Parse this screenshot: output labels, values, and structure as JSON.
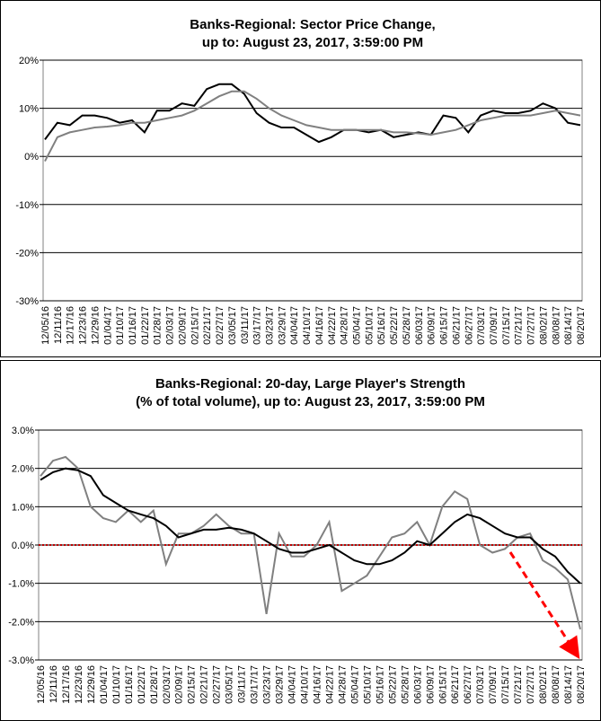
{
  "chart_data": [
    {
      "type": "line",
      "title": [
        "Banks-Regional: Sector Price Change,",
        "up to: August 23, 2017, 3:59:00 PM"
      ],
      "categories": [
        "12/05/16",
        "12/11/16",
        "12/17/16",
        "12/23/16",
        "12/29/16",
        "01/04/17",
        "01/10/17",
        "01/16/17",
        "01/22/17",
        "01/28/17",
        "02/03/17",
        "02/09/17",
        "02/15/17",
        "02/21/17",
        "02/27/17",
        "03/05/17",
        "03/11/17",
        "03/17/17",
        "03/23/17",
        "03/29/17",
        "04/04/17",
        "04/10/17",
        "04/16/17",
        "04/22/17",
        "04/28/17",
        "05/04/17",
        "05/10/17",
        "05/16/17",
        "05/22/17",
        "05/28/17",
        "06/03/17",
        "06/09/17",
        "06/15/17",
        "06/21/17",
        "06/27/17",
        "07/03/17",
        "07/09/17",
        "07/15/17",
        "07/21/17",
        "07/27/17",
        "08/02/17",
        "08/08/17",
        "08/14/17",
        "08/20/17"
      ],
      "series": [
        {
          "color": "#000000",
          "values": [
            3.5,
            7,
            6.5,
            8.5,
            8.5,
            8,
            7,
            7.5,
            5,
            9.5,
            9.5,
            11,
            10.5,
            14,
            15,
            15,
            13,
            9,
            7,
            6,
            6,
            4.5,
            3,
            4,
            5.5,
            5.5,
            5,
            5.5,
            4,
            4.5,
            5,
            4.5,
            8.5,
            8,
            5,
            8.5,
            9.5,
            9,
            9,
            9.5,
            11,
            10,
            7,
            6.5
          ]
        },
        {
          "color": "#808080",
          "values": [
            -1,
            4,
            5,
            5.5,
            6,
            6.2,
            6.5,
            7,
            7,
            7.5,
            8,
            8.5,
            9.5,
            11,
            12.5,
            13.5,
            13.5,
            12,
            10,
            8.5,
            7.5,
            6.5,
            6,
            5.5,
            5.5,
            5.5,
            5.5,
            5.5,
            5,
            5,
            4.8,
            4.5,
            5,
            5.5,
            6.5,
            7.5,
            8,
            8.5,
            8.5,
            8.5,
            9,
            9.5,
            9,
            8.5
          ]
        }
      ],
      "ylim": [
        -30,
        20
      ],
      "yticks": [
        {
          "value": 20,
          "label": "20%"
        },
        {
          "value": 10,
          "label": "10%"
        },
        {
          "value": 0,
          "label": "0%"
        },
        {
          "value": -10,
          "label": "-10%"
        },
        {
          "value": -20,
          "label": "-20%"
        },
        {
          "value": -30,
          "label": "-30%"
        }
      ],
      "grid": true
    },
    {
      "type": "line",
      "title": [
        "Banks-Regional: 20-day, Large Player's Strength",
        "(% of total volume), up to: August 23, 2017, 3:59:00 PM"
      ],
      "categories": [
        "12/05/16",
        "12/11/16",
        "12/17/16",
        "12/23/16",
        "12/29/16",
        "01/04/17",
        "01/10/17",
        "01/16/17",
        "01/22/17",
        "01/28/17",
        "02/03/17",
        "02/09/17",
        "02/15/17",
        "02/21/17",
        "02/27/17",
        "03/05/17",
        "03/11/17",
        "03/17/17",
        "03/23/17",
        "03/29/17",
        "04/04/17",
        "04/10/17",
        "04/16/17",
        "04/22/17",
        "04/28/17",
        "05/04/17",
        "05/10/17",
        "05/16/17",
        "05/22/17",
        "05/28/17",
        "06/03/17",
        "06/09/17",
        "06/15/17",
        "06/21/17",
        "06/27/17",
        "07/03/17",
        "07/09/17",
        "07/15/17",
        "07/21/17",
        "07/27/17",
        "08/02/17",
        "08/08/17",
        "08/14/17",
        "08/20/17"
      ],
      "series": [
        {
          "color": "#808080",
          "values": [
            1.8,
            2.2,
            2.3,
            2.0,
            1.0,
            0.7,
            0.6,
            0.9,
            0.6,
            0.9,
            -0.5,
            0.3,
            0.3,
            0.5,
            0.8,
            0.5,
            0.3,
            0.3,
            -1.8,
            0.3,
            -0.3,
            -0.3,
            0.0,
            0.6,
            -1.2,
            -1.0,
            -0.8,
            -0.3,
            0.2,
            0.3,
            0.6,
            0.0,
            1.0,
            1.4,
            1.2,
            0.0,
            -0.2,
            -0.1,
            0.2,
            0.3,
            -0.4,
            -0.6,
            -0.9,
            -2.2
          ]
        },
        {
          "color": "#000000",
          "values": [
            1.7,
            1.9,
            2.0,
            1.95,
            1.8,
            1.3,
            1.1,
            0.9,
            0.8,
            0.7,
            0.5,
            0.2,
            0.3,
            0.4,
            0.4,
            0.45,
            0.4,
            0.3,
            0.1,
            -0.1,
            -0.2,
            -0.2,
            -0.1,
            0.0,
            -0.2,
            -0.4,
            -0.5,
            -0.5,
            -0.4,
            -0.2,
            0.1,
            0.0,
            0.3,
            0.6,
            0.8,
            0.7,
            0.5,
            0.3,
            0.2,
            0.2,
            -0.1,
            -0.3,
            -0.7,
            -1.0
          ]
        }
      ],
      "ylim": [
        -3,
        3
      ],
      "yticks": [
        {
          "value": 3,
          "label": "3.0%"
        },
        {
          "value": 2,
          "label": "2.0%"
        },
        {
          "value": 1,
          "label": "1.0%"
        },
        {
          "value": 0,
          "label": "0.0%"
        },
        {
          "value": -1,
          "label": "-1.0%"
        },
        {
          "value": -2,
          "label": "-2.0%"
        },
        {
          "value": -3,
          "label": "-3.0%"
        }
      ],
      "grid": true,
      "reference_line": {
        "value": 0,
        "color": "#c00000"
      }
    }
  ]
}
